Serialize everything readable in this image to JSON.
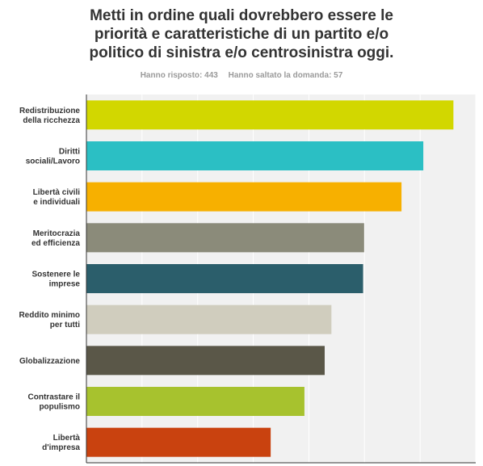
{
  "header": {
    "title_lines": [
      "Metti in ordine quali dovrebbero essere le",
      "priorità e caratteristiche di un partito e/o",
      "politico di sinistra e/o centrosinistra oggi."
    ],
    "answered": "Hanno risposto: 443",
    "skipped": "Hanno saltato la domanda: 57"
  },
  "chart_data": {
    "type": "bar",
    "orientation": "horizontal",
    "categories": [
      [
        "Redistribuzione",
        "della ricchezza"
      ],
      [
        "Diritti",
        "sociali/Lavoro"
      ],
      [
        "Libertà civili",
        "e individuali"
      ],
      [
        "Meritocrazia",
        "ed efficienza"
      ],
      [
        "Sostenere le",
        "imprese"
      ],
      [
        "Reddito minimo",
        "per tutti"
      ],
      [
        "Globalizzazione"
      ],
      [
        "Contrastare il",
        "populismo"
      ],
      [
        "Libertà",
        "d'impresa"
      ]
    ],
    "values": [
      7.07,
      6.49,
      6.07,
      5.35,
      5.33,
      4.72,
      4.59,
      4.2,
      3.55
    ],
    "colors": [
      "#d2d700",
      "#2bbfc4",
      "#f7b000",
      "#8b8b7a",
      "#2b5e6b",
      "#d0cdbe",
      "#5a5748",
      "#a7c22e",
      "#c9420f"
    ],
    "xlim": [
      0,
      7.5
    ],
    "grid": true,
    "gridlines": 7,
    "xlabel": "",
    "ylabel": "",
    "legend": "none"
  }
}
